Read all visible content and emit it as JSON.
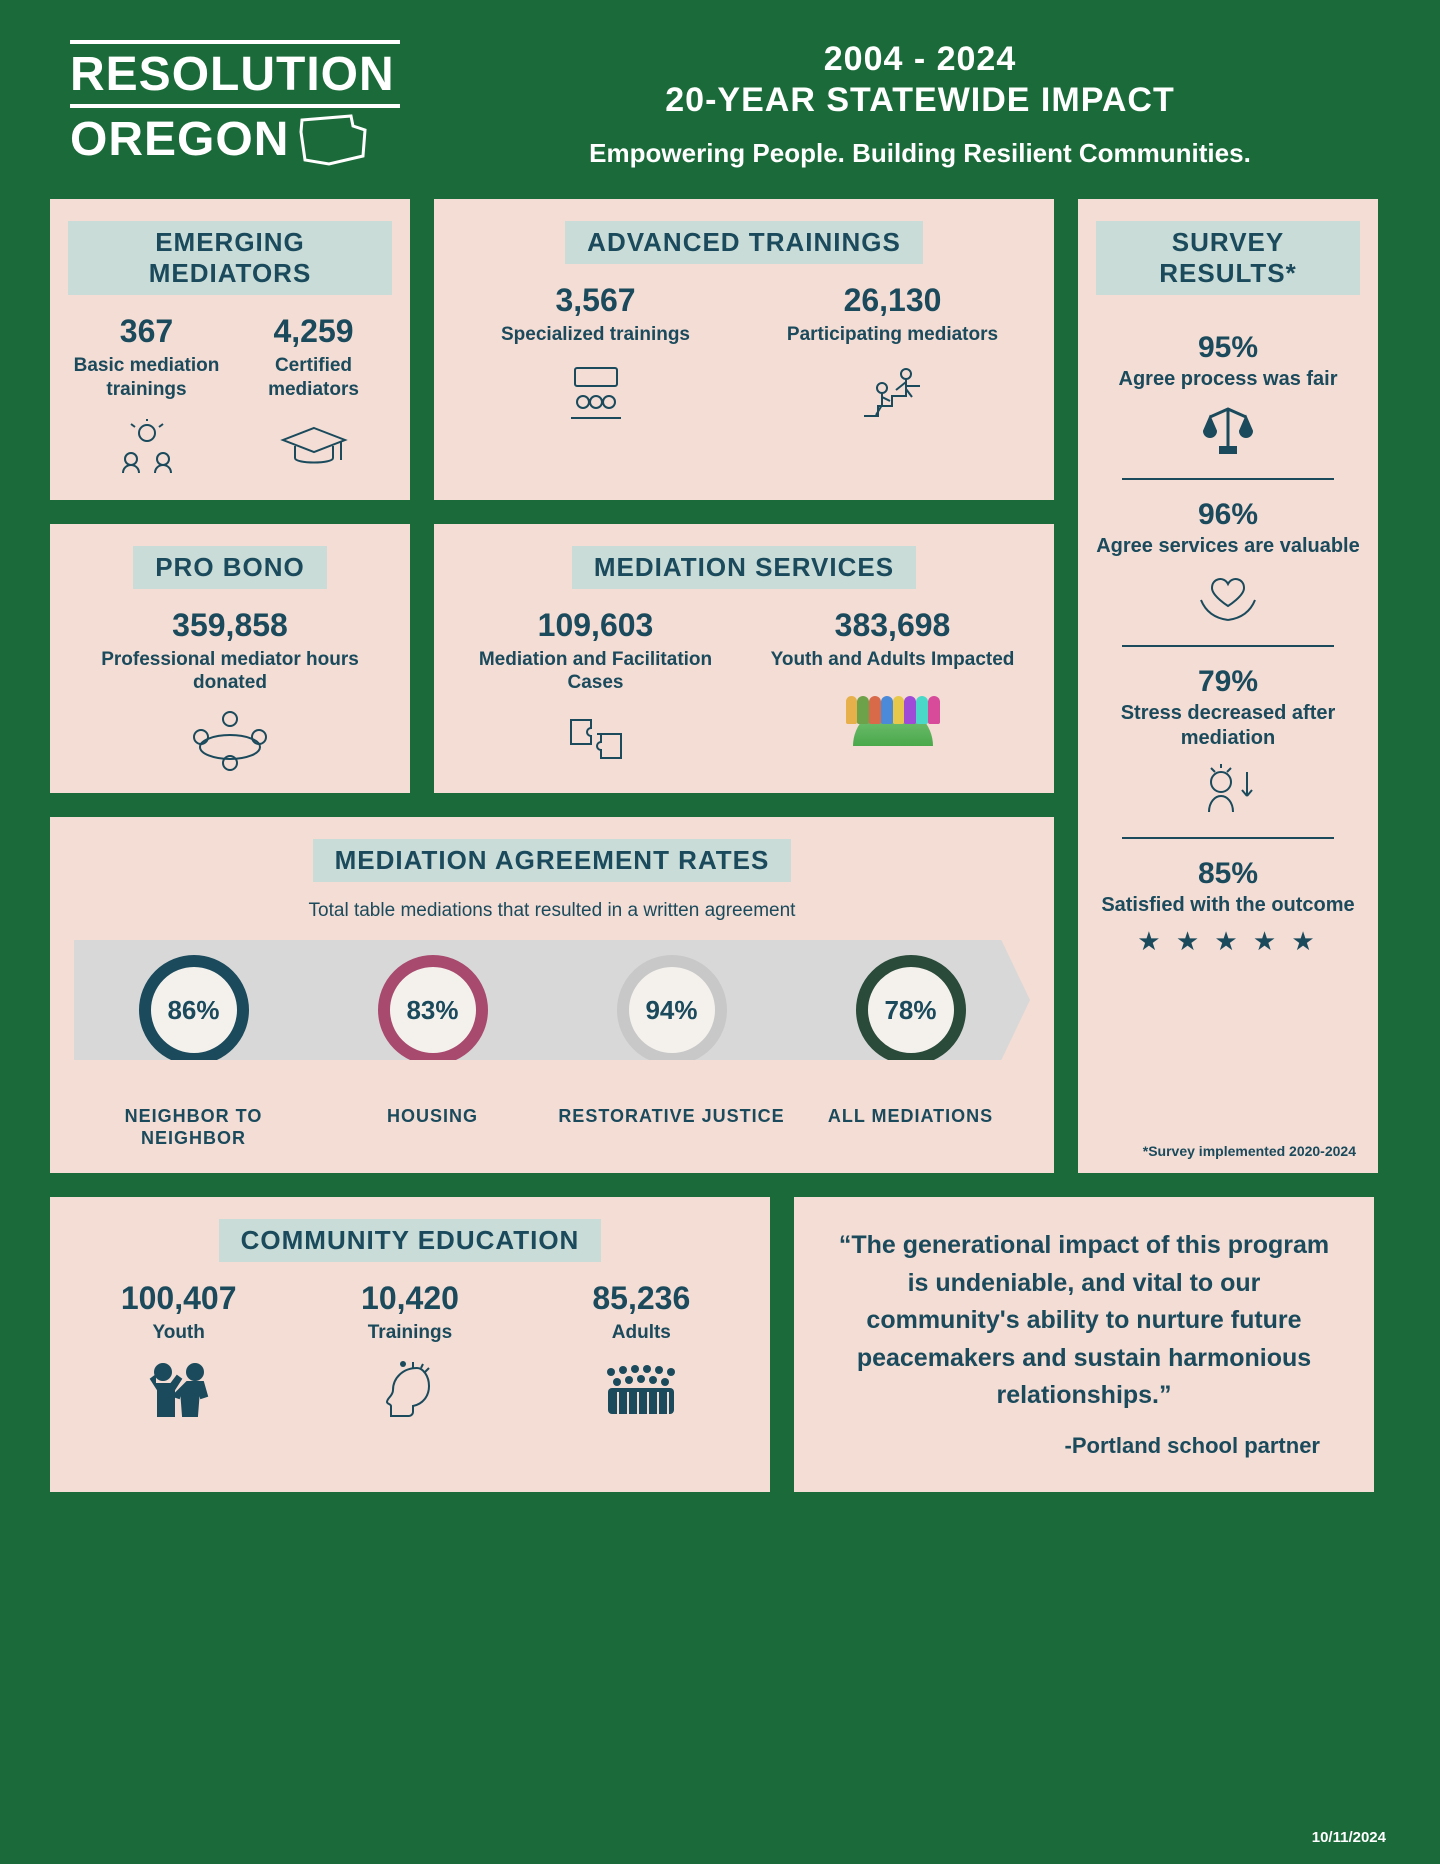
{
  "colors": {
    "bg": "#1b6b3a",
    "card_bg": "#f3ddd5",
    "title_bg": "#c9dcd7",
    "ink": "#1a4a5c"
  },
  "logo": {
    "line1": "RESOLUTION",
    "line2": "OREGON"
  },
  "header": {
    "years": "2004 - 2024",
    "impact": "20-YEAR STATEWIDE IMPACT",
    "tagline": "Empowering People. Building Resilient Communities."
  },
  "emerging": {
    "title": "EMERGING MEDIATORS",
    "a_num": "367",
    "a_label": "Basic mediation trainings",
    "b_num": "4,259",
    "b_label": "Certified mediators"
  },
  "advanced": {
    "title": "ADVANCED TRAININGS",
    "a_num": "3,567",
    "a_label": "Specialized trainings",
    "b_num": "26,130",
    "b_label": "Participating mediators"
  },
  "probono": {
    "title": "PRO BONO",
    "num": "359,858",
    "label": "Professional mediator hours donated"
  },
  "services": {
    "title": "MEDIATION SERVICES",
    "a_num": "109,603",
    "a_label": "Mediation and Facilitation Cases",
    "b_num": "383,698",
    "b_label": "Youth and Adults Impacted"
  },
  "survey": {
    "title": "SURVEY RESULTS*",
    "items": [
      {
        "num": "95%",
        "label": "Agree process was fair"
      },
      {
        "num": "96%",
        "label": "Agree services are valuable"
      },
      {
        "num": "79%",
        "label": "Stress decreased after mediation"
      },
      {
        "num": "85%",
        "label": "Satisfied with the outcome"
      }
    ],
    "stars": "★ ★ ★ ★ ★",
    "note": "*Survey implemented 2020-2024"
  },
  "rates": {
    "title": "MEDIATION AGREEMENT RATES",
    "subtitle": "Total table mediations that resulted in a written agreement",
    "items": [
      {
        "pct": "86%",
        "label": "NEIGHBOR TO NEIGHBOR",
        "color": "#1a4a5c"
      },
      {
        "pct": "83%",
        "label": "HOUSING",
        "color": "#a84a6e"
      },
      {
        "pct": "94%",
        "label": "RESTORATIVE JUSTICE",
        "color": "#c8c8c8"
      },
      {
        "pct": "78%",
        "label": "ALL MEDIATIONS",
        "color": "#2a4a3a"
      }
    ]
  },
  "education": {
    "title": "COMMUNITY EDUCATION",
    "a_num": "100,407",
    "a_label": "Youth",
    "b_num": "10,420",
    "b_label": "Trainings",
    "c_num": "85,236",
    "c_label": "Adults"
  },
  "quote": {
    "text": "“The generational impact of this program is undeniable, and vital to our community's ability to nurture future peacemakers and sustain harmonious relationships.”",
    "attr": "-Portland school partner"
  },
  "footer_date": "10/11/2024",
  "people_colors": [
    "#e8b04a",
    "#6ea24a",
    "#d86a4a",
    "#4a8ad8",
    "#e8c84a",
    "#a04ad8",
    "#4ad8c8",
    "#d84a9a"
  ]
}
